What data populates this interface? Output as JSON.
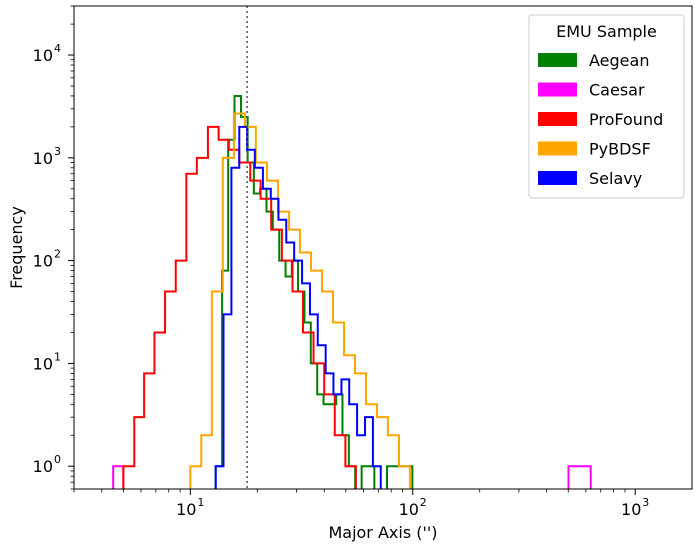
{
  "chart_data": {
    "type": "histogram",
    "xlabel": "Major Axis ('')",
    "ylabel": "Frequency",
    "xscale": "log",
    "yscale": "log",
    "xlim": [
      3,
      1800
    ],
    "ylim": [
      0.6,
      30000
    ],
    "x_ticks": [
      {
        "base": "10",
        "exp": "1",
        "value": 10
      },
      {
        "base": "10",
        "exp": "2",
        "value": 100
      },
      {
        "base": "10",
        "exp": "3",
        "value": 1000
      }
    ],
    "y_ticks": [
      {
        "base": "10",
        "exp": "0",
        "value": 1
      },
      {
        "base": "10",
        "exp": "1",
        "value": 10
      },
      {
        "base": "10",
        "exp": "2",
        "value": 100
      },
      {
        "base": "10",
        "exp": "3",
        "value": 1000
      },
      {
        "base": "10",
        "exp": "4",
        "value": 10000
      }
    ],
    "vline": {
      "x": 18,
      "style": "dotted",
      "color": "#555555"
    },
    "legend": {
      "title": "EMU Sample",
      "position": "upper right"
    },
    "series": [
      {
        "name": "Aegean",
        "color": "#008000",
        "edges": [
          13.0,
          13.9,
          14.8,
          15.8,
          16.9,
          18.1,
          19.3,
          20.6,
          22.0,
          23.5,
          25.1,
          26.8,
          28.6,
          30.5,
          32.6,
          34.8,
          37.2,
          39.7,
          42.4,
          45.3,
          48.3,
          51.6,
          55.1,
          58.9,
          62.9,
          67.2,
          71.7,
          76.6,
          81.8,
          87.4,
          93.3,
          99.6,
          106.4,
          113.6,
          121.3,
          129.6,
          138.4,
          147.8,
          157.8,
          168.5,
          180.0,
          192.2,
          205.3,
          219.2,
          234.1,
          250.0
        ],
        "counts": [
          1,
          80,
          1500,
          4000,
          2500,
          900,
          450,
          500,
          300,
          200,
          100,
          70,
          100,
          50,
          25,
          10,
          5,
          4,
          4,
          5,
          2,
          1,
          0,
          1,
          1,
          0,
          0,
          1,
          1,
          1,
          1,
          0,
          0,
          0,
          0,
          0,
          0,
          0,
          0,
          0,
          0,
          0,
          0,
          0,
          0
        ]
      },
      {
        "name": "Caesar",
        "color": "#ff00ff",
        "edges": [
          4.5,
          5.0,
          5.6,
          6.3,
          7.1,
          7.9,
          8.9,
          10.0,
          11.2,
          12.6,
          14.1,
          15.8,
          17.8,
          20.0,
          22.4,
          25.1,
          28.2,
          31.6,
          35.5,
          39.8,
          44.7,
          50.1,
          56.2,
          63.1,
          70.8,
          79.4,
          89.1,
          100.0,
          112.2,
          125.9,
          141.3,
          158.5,
          177.8,
          199.5,
          223.9,
          251.2,
          281.8,
          316.2,
          354.8,
          398.1,
          446.7,
          501.2,
          562.3,
          631.0
        ],
        "counts": [
          1,
          0,
          0,
          0,
          0,
          0,
          0,
          0,
          0,
          0,
          0,
          0,
          0,
          0,
          0,
          0,
          0,
          0,
          0,
          0,
          0,
          0,
          0,
          0,
          0,
          0,
          0,
          0,
          0,
          0,
          0,
          0,
          0,
          0,
          0,
          0,
          0,
          0,
          0,
          0,
          0,
          1,
          1
        ]
      },
      {
        "name": "ProFound",
        "color": "#ff0000",
        "edges": [
          5.0,
          5.6,
          6.2,
          6.9,
          7.7,
          8.6,
          9.6,
          10.7,
          12.0,
          13.4,
          14.9,
          16.6,
          18.6,
          20.7,
          23.1,
          25.8,
          28.8,
          32.1,
          35.8,
          40.0,
          44.6,
          49.8,
          55.5,
          61.9,
          69.1,
          77.1,
          86.0
        ],
        "counts": [
          1,
          3,
          8,
          20,
          50,
          100,
          700,
          1000,
          2000,
          1500,
          1200,
          900,
          600,
          400,
          200,
          100,
          50,
          20,
          10,
          5,
          2,
          1,
          0,
          0,
          0,
          0
        ]
      },
      {
        "name": "PyBDSF",
        "color": "#ffa500",
        "edges": [
          10.0,
          11.2,
          12.5,
          14.0,
          15.7,
          17.6,
          19.7,
          22.1,
          24.8,
          27.8,
          31.1,
          34.9,
          39.1,
          43.8,
          49.1,
          55.0,
          61.6,
          69.0,
          77.3,
          86.7,
          97.1,
          108.8,
          121.9,
          136.6,
          153.1,
          171.5,
          192.2,
          215.3,
          241.3,
          270.4
        ],
        "counts": [
          1,
          2,
          50,
          1000,
          2700,
          2000,
          900,
          600,
          300,
          200,
          120,
          80,
          50,
          25,
          12,
          8,
          4,
          3,
          2,
          1,
          0,
          0,
          0,
          0,
          0,
          0,
          0,
          0,
          0
        ]
      },
      {
        "name": "Selavy",
        "color": "#0000ff",
        "edges": [
          13.0,
          14.1,
          15.3,
          16.6,
          18.0,
          19.5,
          21.2,
          23.0,
          24.9,
          27.0,
          29.3,
          31.8,
          34.5,
          37.4,
          40.6,
          44.0,
          47.8,
          51.8,
          56.2,
          61.0,
          66.2,
          71.8,
          77.9,
          84.5,
          91.6,
          99.4,
          107.9,
          117.0,
          127.0,
          137.7,
          149.4,
          162.1,
          175.9,
          190.8,
          207.0,
          224.6
        ],
        "counts": [
          1,
          30,
          800,
          2000,
          1200,
          800,
          500,
          400,
          250,
          150,
          100,
          60,
          30,
          15,
          8,
          5,
          7,
          4,
          2,
          3,
          1,
          0,
          0,
          0,
          0,
          0,
          0,
          0,
          0,
          0,
          0,
          0,
          0,
          0,
          0
        ]
      }
    ]
  }
}
